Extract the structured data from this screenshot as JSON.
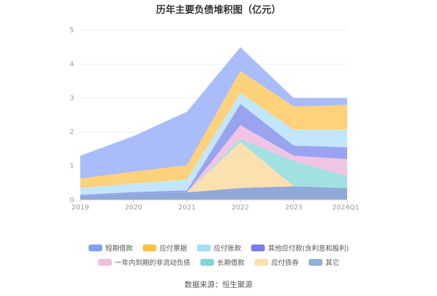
{
  "title": "历年主要负债堆积图（亿元）",
  "source": "数据来源：恒生聚源",
  "chart_data": {
    "type": "area",
    "stacked": true,
    "categories": [
      "2019",
      "2020",
      "2021",
      "2022",
      "2023",
      "2024Q1"
    ],
    "ylim": [
      0,
      5
    ],
    "yticks": [
      0,
      1,
      2,
      3,
      4,
      5
    ],
    "grid": true,
    "legend_position": "bottom",
    "series": [
      {
        "name": "其它",
        "color": "#8fa9d9",
        "values": [
          0.12,
          0.18,
          0.22,
          0.35,
          0.4,
          0.35
        ]
      },
      {
        "name": "应付债券",
        "color": "#fde0b0",
        "values": [
          0.0,
          0.0,
          0.0,
          1.35,
          0.0,
          0.0
        ]
      },
      {
        "name": "长期借款",
        "color": "#a3e0e2",
        "values": [
          0.0,
          0.0,
          0.0,
          0.1,
          0.75,
          0.35
        ]
      },
      {
        "name": "一年内到期的非流动负债",
        "color": "#f2c4e4",
        "values": [
          0.0,
          0.0,
          0.0,
          0.4,
          0.15,
          0.5
        ]
      },
      {
        "name": "其他应付款(含利息和股利)",
        "color": "#9aa3f0",
        "values": [
          0.03,
          0.05,
          0.06,
          0.63,
          0.3,
          0.35
        ]
      },
      {
        "name": "应付账款",
        "color": "#c2e6fb",
        "values": [
          0.2,
          0.25,
          0.32,
          0.32,
          0.47,
          0.52
        ]
      },
      {
        "name": "应付票据",
        "color": "#fdd27a",
        "values": [
          0.28,
          0.35,
          0.42,
          0.65,
          0.68,
          0.73
        ]
      },
      {
        "name": "短期借款",
        "color": "#aabdfa",
        "values": [
          0.67,
          1.05,
          1.58,
          0.7,
          0.25,
          0.2
        ]
      }
    ],
    "legend_order": [
      "短期借款",
      "应付票据",
      "应付账款",
      "其他应付款(含利息和股利)",
      "一年内到期的非流动负债",
      "长期借款",
      "应付债券",
      "其它"
    ],
    "legend_colors": [
      "#7ea1f5",
      "#fbc244",
      "#a9dcfa",
      "#7b7cef",
      "#f0bde0",
      "#86d3d5",
      "#fde0b0",
      "#92aedb"
    ]
  }
}
